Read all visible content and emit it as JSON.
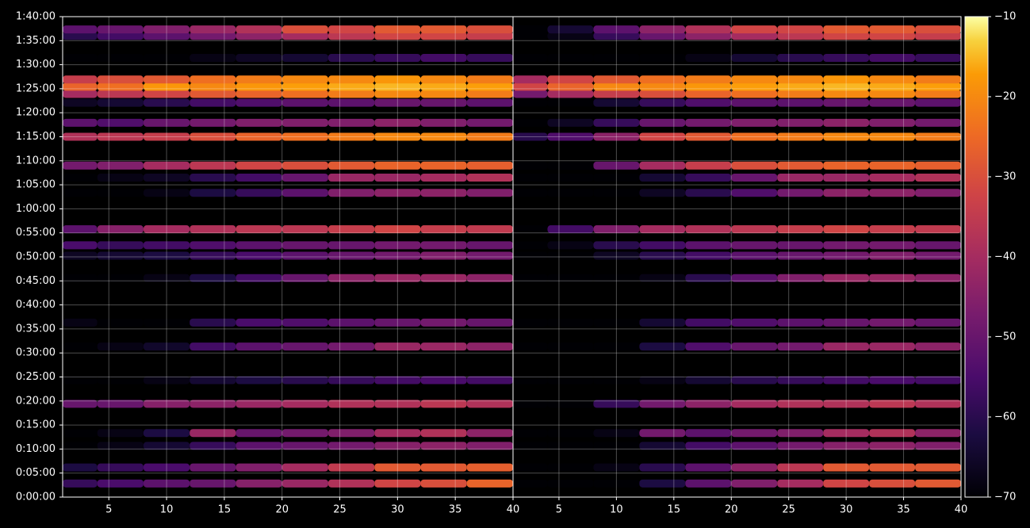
{
  "chart_data": {
    "type": "heatmap",
    "colormap": "inferno",
    "grid": true,
    "xlim": [
      1,
      40
    ],
    "xticks": [
      5,
      10,
      15,
      20,
      25,
      30,
      35,
      40
    ],
    "ylim": [
      0,
      6000
    ],
    "yticks": [
      {
        "value": 0,
        "label": "0:00:00"
      },
      {
        "value": 300,
        "label": "0:05:00"
      },
      {
        "value": 600,
        "label": "0:10:00"
      },
      {
        "value": 900,
        "label": "0:15:00"
      },
      {
        "value": 1200,
        "label": "0:20:00"
      },
      {
        "value": 1500,
        "label": "0:25:00"
      },
      {
        "value": 1800,
        "label": "0:30:00"
      },
      {
        "value": 2100,
        "label": "0:35:00"
      },
      {
        "value": 2400,
        "label": "0:40:00"
      },
      {
        "value": 2700,
        "label": "0:45:00"
      },
      {
        "value": 3000,
        "label": "0:50:00"
      },
      {
        "value": 3300,
        "label": "0:55:00"
      },
      {
        "value": 3600,
        "label": "1:00:00"
      },
      {
        "value": 3900,
        "label": "1:05:00"
      },
      {
        "value": 4200,
        "label": "1:10:00"
      },
      {
        "value": 4500,
        "label": "1:15:00"
      },
      {
        "value": 4800,
        "label": "1:20:00"
      },
      {
        "value": 5100,
        "label": "1:25:00"
      },
      {
        "value": 5400,
        "label": "1:30:00"
      },
      {
        "value": 5700,
        "label": "1:35:00"
      },
      {
        "value": 6000,
        "label": "1:40:00"
      }
    ],
    "clim": [
      -70,
      -10
    ],
    "cticks": [
      {
        "value": -70,
        "label": "−70"
      },
      {
        "value": -60,
        "label": "−60"
      },
      {
        "value": -50,
        "label": "−50"
      },
      {
        "value": -40,
        "label": "−40"
      },
      {
        "value": -30,
        "label": "−30"
      },
      {
        "value": -20,
        "label": "−20"
      },
      {
        "value": -10,
        "label": "−10"
      }
    ],
    "x": [
      2,
      6,
      10,
      14,
      18,
      22,
      26,
      30,
      34,
      38
    ],
    "rows": [
      170,
      370,
      640,
      800,
      1165,
      1460,
      1880,
      2180,
      2735,
      3015,
      3145,
      3345,
      3800,
      3990,
      4140,
      4500,
      4675,
      4925,
      5035,
      5125,
      5215,
      5485,
      5760,
      5840
    ],
    "panels": [
      {
        "values": [
          [
            -58,
            -55,
            -52,
            -50,
            -45,
            -42,
            -38,
            -32,
            -30,
            -26
          ],
          [
            -62,
            -58,
            -55,
            -50,
            -46,
            -40,
            -35,
            -28,
            -28,
            -27
          ],
          [
            -70,
            -68,
            -64,
            -58,
            -52,
            -50,
            -48,
            -45,
            -44,
            -46
          ],
          [
            -70,
            -68,
            -62,
            -42,
            -50,
            -48,
            -46,
            -40,
            -38,
            -44
          ],
          [
            -50,
            -50,
            -45,
            -44,
            -42,
            -40,
            -38,
            -38,
            -36,
            -38
          ],
          [
            -70,
            -70,
            -68,
            -64,
            -62,
            -60,
            -58,
            -56,
            -55,
            -56
          ],
          [
            -70,
            -68,
            -65,
            -56,
            -52,
            -50,
            -48,
            -42,
            -42,
            -44
          ],
          [
            -68,
            -70,
            -70,
            -60,
            -55,
            -54,
            -52,
            -50,
            -48,
            -50
          ],
          [
            -70,
            -70,
            -68,
            -62,
            -56,
            -50,
            -44,
            -42,
            -42,
            -44
          ],
          [
            -66,
            -64,
            -62,
            -58,
            -55,
            -52,
            -50,
            -48,
            -46,
            -48
          ],
          [
            -55,
            -58,
            -56,
            -54,
            -52,
            -50,
            -50,
            -48,
            -48,
            -50
          ],
          [
            -52,
            -45,
            -40,
            -38,
            -36,
            -36,
            -34,
            -32,
            -34,
            -35
          ],
          [
            -70,
            -70,
            -68,
            -62,
            -58,
            -52,
            -46,
            -44,
            -44,
            -46
          ],
          [
            -70,
            -68,
            -66,
            -60,
            -56,
            -50,
            -42,
            -42,
            -40,
            -38
          ],
          [
            -48,
            -46,
            -40,
            -36,
            -32,
            -30,
            -28,
            -26,
            -26,
            -27
          ],
          [
            -38,
            -36,
            -34,
            -30,
            -26,
            -24,
            -22,
            -20,
            -20,
            -22
          ],
          [
            -52,
            -54,
            -50,
            -48,
            -46,
            -46,
            -46,
            -44,
            -46,
            -48
          ],
          [
            -66,
            -64,
            -60,
            -56,
            -54,
            -52,
            -52,
            -50,
            -50,
            -52
          ],
          [
            -40,
            -36,
            -32,
            -28,
            -26,
            -24,
            -22,
            -20,
            -20,
            -22
          ],
          [
            -26,
            -24,
            -18,
            -20,
            -18,
            -17,
            -16,
            -15,
            -16,
            -17
          ],
          [
            -34,
            -30,
            -28,
            -24,
            -22,
            -20,
            -20,
            -18,
            -20,
            -22
          ],
          [
            -70,
            -70,
            -70,
            -68,
            -66,
            -64,
            -60,
            -58,
            -56,
            -58
          ],
          [
            -60,
            -56,
            -52,
            -48,
            -44,
            -40,
            -36,
            -32,
            -32,
            -34
          ],
          [
            -52,
            -50,
            -46,
            -42,
            -38,
            -30,
            -32,
            -28,
            -28,
            -30
          ]
        ]
      },
      {
        "values": [
          [
            -70,
            -70,
            -70,
            -62,
            -52,
            -46,
            -40,
            -32,
            -30,
            -28
          ],
          [
            -70,
            -70,
            -68,
            -60,
            -52,
            -44,
            -36,
            -28,
            -28,
            -28
          ],
          [
            -70,
            -70,
            -70,
            -64,
            -56,
            -52,
            -48,
            -45,
            -44,
            -46
          ],
          [
            -70,
            -70,
            -68,
            -48,
            -52,
            -48,
            -46,
            -40,
            -38,
            -44
          ],
          [
            -70,
            -70,
            -58,
            -48,
            -44,
            -40,
            -38,
            -38,
            -36,
            -38
          ],
          [
            -70,
            -70,
            -70,
            -68,
            -64,
            -60,
            -58,
            -56,
            -55,
            -56
          ],
          [
            -70,
            -70,
            -70,
            -62,
            -54,
            -50,
            -48,
            -42,
            -42,
            -44
          ],
          [
            -70,
            -70,
            -70,
            -64,
            -56,
            -54,
            -52,
            -50,
            -48,
            -50
          ],
          [
            -70,
            -70,
            -70,
            -68,
            -60,
            -52,
            -46,
            -42,
            -42,
            -44
          ],
          [
            -70,
            -70,
            -66,
            -60,
            -56,
            -52,
            -50,
            -48,
            -46,
            -48
          ],
          [
            -70,
            -68,
            -60,
            -56,
            -52,
            -50,
            -50,
            -48,
            -48,
            -50
          ],
          [
            -70,
            -56,
            -46,
            -40,
            -38,
            -36,
            -34,
            -32,
            -34,
            -35
          ],
          [
            -70,
            -70,
            -70,
            -66,
            -60,
            -54,
            -48,
            -44,
            -44,
            -46
          ],
          [
            -70,
            -70,
            -70,
            -64,
            -58,
            -50,
            -42,
            -42,
            -40,
            -38
          ],
          [
            -70,
            -70,
            -50,
            -40,
            -34,
            -30,
            -28,
            -26,
            -26,
            -27
          ],
          [
            -60,
            -54,
            -44,
            -32,
            -28,
            -24,
            -22,
            -20,
            -20,
            -22
          ],
          [
            -70,
            -66,
            -58,
            -50,
            -48,
            -46,
            -46,
            -44,
            -46,
            -48
          ],
          [
            -70,
            -70,
            -64,
            -58,
            -54,
            -52,
            -52,
            -50,
            -50,
            -52
          ],
          [
            -48,
            -40,
            -34,
            -30,
            -26,
            -24,
            -22,
            -20,
            -20,
            -22
          ],
          [
            -32,
            -26,
            -20,
            -20,
            -18,
            -17,
            -16,
            -15,
            -16,
            -17
          ],
          [
            -40,
            -32,
            -28,
            -24,
            -22,
            -20,
            -20,
            -18,
            -20,
            -22
          ],
          [
            -70,
            -70,
            -70,
            -70,
            -68,
            -64,
            -60,
            -58,
            -56,
            -58
          ],
          [
            -70,
            -68,
            -58,
            -50,
            -44,
            -40,
            -36,
            -32,
            -32,
            -34
          ],
          [
            -70,
            -64,
            -52,
            -44,
            -38,
            -32,
            -32,
            -28,
            -28,
            -30
          ]
        ]
      }
    ]
  }
}
